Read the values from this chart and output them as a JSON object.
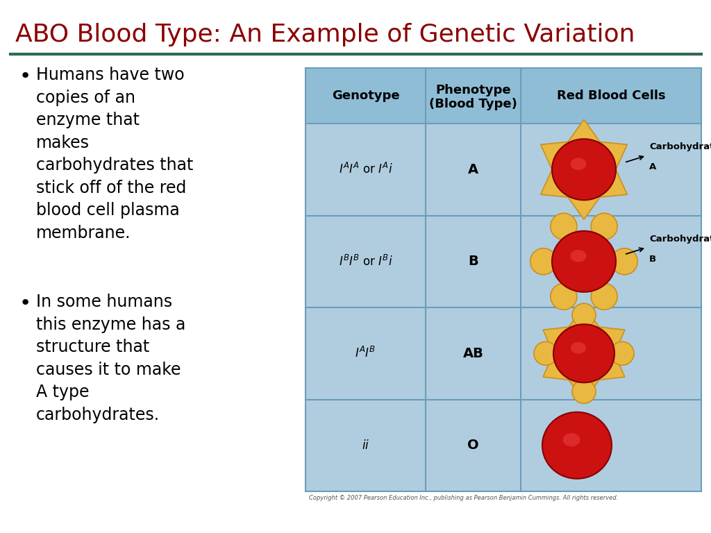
{
  "title": "ABO Blood Type: An Example of Genetic Variation",
  "title_color": "#8B0000",
  "title_fontsize": 26,
  "separator_color": "#2E6B4F",
  "bullet_text_1": "Humans have two\ncopies of an\nenzyme that\nmakes\ncarbohydrates that\nstick off of the red\nblood cell plasma\nmembrane.",
  "bullet_text_2": "In some humans\nthis enzyme has a\nstructure that\ncauses it to make\nA type\ncarbohydrates.",
  "bullet_fontsize": 17,
  "text_color": "#000000",
  "table_bg": "#B0CDE0",
  "table_header_bg": "#8FBDD6",
  "table_border_color": "#6A9DB8",
  "table_header_color": "#000000",
  "table_text_color": "#000000",
  "bg_color": "#FFFFFF",
  "copyright": "Copyright © 2007 Pearson Education Inc., publishing as Pearson Benjamin Cummings. All rights reserved.",
  "red_cell_color": "#CC1111",
  "gold_color": "#E8B840",
  "gold_dark": "#C89020"
}
